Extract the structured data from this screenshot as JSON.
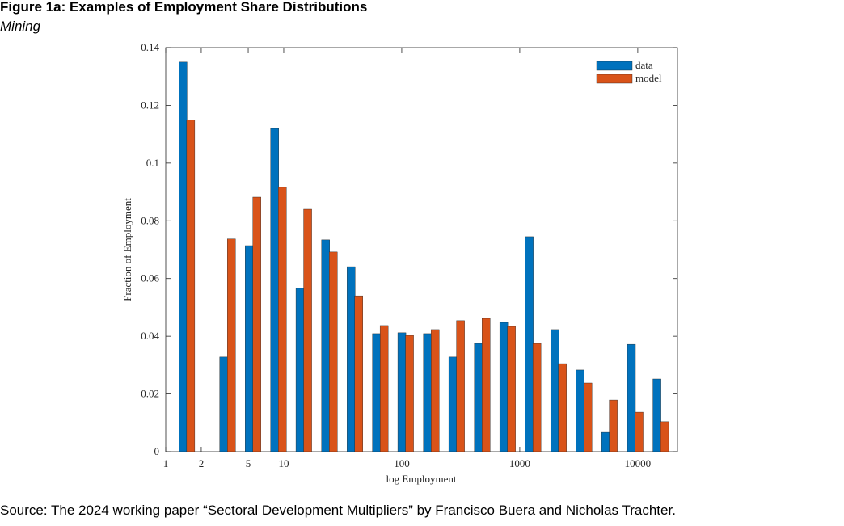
{
  "chart_data": {
    "type": "bar",
    "title": "Figure 1a: Examples of Employment Share Distributions",
    "subtitle": "Mining",
    "note": "Source: The 2024 working paper “Sectoral Development Multipliers” by Francisco Buera and Nicholas Trachter.",
    "xlabel": "log Employment",
    "ylabel": "Fraction of Employment",
    "xscale": "log",
    "x": [
      1.51,
      3.34,
      5.49,
      9.03,
      14.8,
      24.4,
      40.1,
      65.8,
      108,
      178,
      292,
      481,
      789,
      1297,
      2133,
      3506,
      5757,
      9520,
      15670
    ],
    "series": [
      {
        "name": "data",
        "color": "#0072bd",
        "values": [
          0.135,
          0.0328,
          0.0714,
          0.112,
          0.0566,
          0.0734,
          0.0641,
          0.0409,
          0.0412,
          0.0409,
          0.0328,
          0.0375,
          0.0448,
          0.0745,
          0.0423,
          0.0283,
          0.0067,
          0.0372,
          0.0252
        ]
      },
      {
        "name": "model",
        "color": "#d95319",
        "values": [
          0.115,
          0.0737,
          0.0882,
          0.0916,
          0.084,
          0.0692,
          0.054,
          0.0437,
          0.0403,
          0.0423,
          0.0454,
          0.0462,
          0.0434,
          0.0375,
          0.0305,
          0.0238,
          0.0179,
          0.0137,
          0.0104
        ]
      }
    ],
    "xlim": [
      1,
      21700
    ],
    "xticks": [
      1,
      2,
      5,
      10,
      100,
      1000,
      10000
    ],
    "ylim": [
      0,
      0.14
    ],
    "yticks": [
      0,
      0.02,
      0.04,
      0.06,
      0.08,
      0.1,
      0.12,
      0.14
    ],
    "legend": "upper right"
  }
}
